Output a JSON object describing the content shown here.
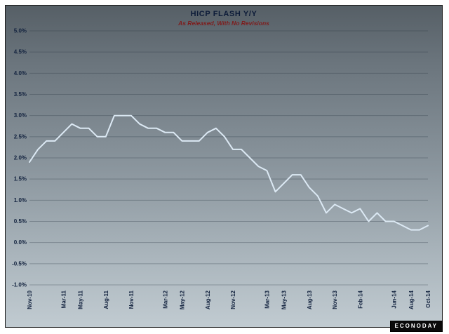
{
  "chart_data": {
    "type": "line",
    "title": "HICP FLASH Y/Y",
    "subtitle": "As Released, With No Revisions",
    "ylim": [
      -1.0,
      5.0
    ],
    "ytick_step": 0.5,
    "ytick_labels": [
      "5.0%",
      "4.5%",
      "4.0%",
      "3.5%",
      "3.0%",
      "2.5%",
      "2.0%",
      "1.5%",
      "1.0%",
      "0.5%",
      "0.0%",
      "-0.5%",
      "-1.0%"
    ],
    "xtick_labels": [
      "Nov-10",
      "Mar-11",
      "May-11",
      "Aug-11",
      "Nov-11",
      "Mar-12",
      "May-12",
      "Aug-12",
      "Nov-12",
      "Mar-13",
      "May-13",
      "Aug-13",
      "Nov-13",
      "Feb-14",
      "Jun-14",
      "Aug-14",
      "Oct-14"
    ],
    "x": [
      "Nov-10",
      "Dec-10",
      "Jan-11",
      "Feb-11",
      "Mar-11",
      "Apr-11",
      "May-11",
      "Jun-11",
      "Jul-11",
      "Aug-11",
      "Sep-11",
      "Oct-11",
      "Nov-11",
      "Dec-11",
      "Jan-12",
      "Feb-12",
      "Mar-12",
      "Apr-12",
      "May-12",
      "Jun-12",
      "Jul-12",
      "Aug-12",
      "Sep-12",
      "Oct-12",
      "Nov-12",
      "Dec-12",
      "Jan-13",
      "Feb-13",
      "Mar-13",
      "Apr-13",
      "May-13",
      "Jun-13",
      "Jul-13",
      "Aug-13",
      "Sep-13",
      "Oct-13",
      "Nov-13",
      "Dec-13",
      "Jan-14",
      "Feb-14",
      "Mar-14",
      "Apr-14",
      "May-14",
      "Jun-14",
      "Jul-14",
      "Aug-14",
      "Sep-14",
      "Oct-14"
    ],
    "series": [
      {
        "name": "HICP Flash Y/Y",
        "values": [
          1.9,
          2.2,
          2.4,
          2.4,
          2.6,
          2.8,
          2.7,
          2.7,
          2.5,
          2.5,
          3.0,
          3.0,
          3.0,
          2.8,
          2.7,
          2.7,
          2.6,
          2.6,
          2.4,
          2.4,
          2.4,
          2.6,
          2.7,
          2.5,
          2.2,
          2.2,
          2.0,
          1.8,
          1.7,
          1.2,
          1.4,
          1.6,
          1.6,
          1.3,
          1.1,
          0.7,
          0.9,
          0.8,
          0.7,
          0.8,
          0.5,
          0.7,
          0.5,
          0.5,
          0.4,
          0.3,
          0.3,
          0.4
        ]
      }
    ],
    "grid": true,
    "legend": "none",
    "line_color": "#dce9f4",
    "grid_color": "rgba(40,52,64,0.32)",
    "title_color": "#0c1b38",
    "subtitle_color": "#7e1c1c",
    "background_top": "#565f66",
    "background_bottom": "#c1cbd1"
  },
  "branding": {
    "logo": "ECONODAY"
  }
}
